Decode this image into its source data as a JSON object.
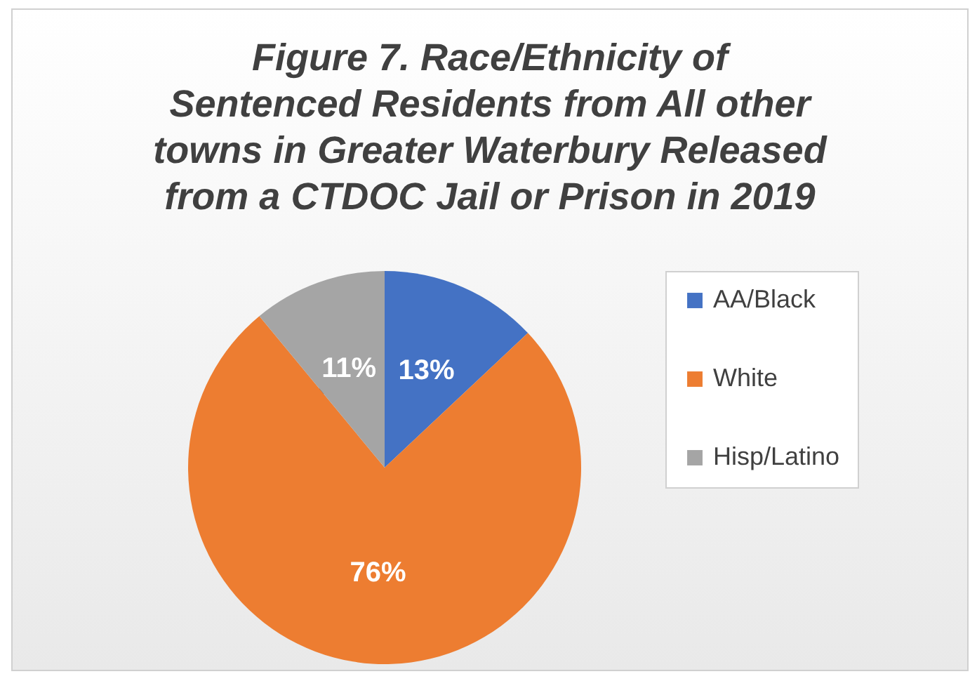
{
  "chart_data": {
    "type": "pie",
    "title": "Figure 7. Race/Ethnicity of Sentenced Residents from All other towns in Greater Waterbury  Released from a CTDOC Jail or Prison in 2019",
    "categories": [
      "AA/Black",
      "White",
      "Hisp/Latino"
    ],
    "values": [
      13,
      76,
      11
    ],
    "colors": [
      "#4472c4",
      "#ed7d31",
      "#a5a5a5"
    ],
    "value_labels": [
      "13%",
      "76%",
      "11%"
    ],
    "legend": "right"
  }
}
